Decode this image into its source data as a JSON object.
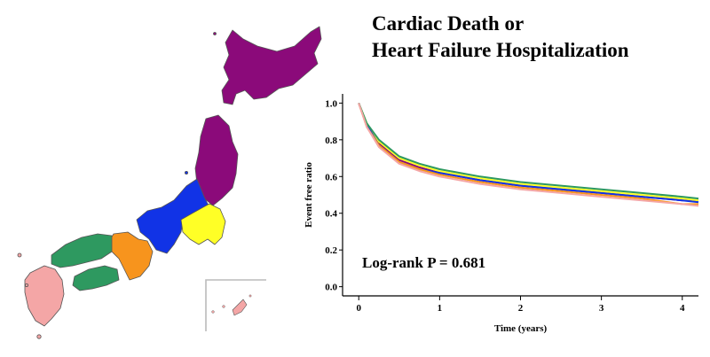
{
  "title": {
    "line1": "Cardiac Death or",
    "line2": "Heart Failure Hospitalization"
  },
  "annotation": "Log-rank P = 0.681",
  "map": {
    "regions": [
      {
        "name": "hokkaido-tohoku",
        "color": "#8B0A7A"
      },
      {
        "name": "kanto",
        "color": "#FFFF26"
      },
      {
        "name": "chubu-hokuriku",
        "color": "#1133E6"
      },
      {
        "name": "kinki",
        "color": "#F7941D"
      },
      {
        "name": "chugoku-shikoku",
        "color": "#2E9960"
      },
      {
        "name": "kyushu-okinawa",
        "color": "#F4A6A6"
      }
    ]
  },
  "chart_data": {
    "type": "line",
    "title": "",
    "xlabel": "Time (years)",
    "ylabel": "Event free ratio",
    "xlim": [
      -0.2,
      4.2
    ],
    "ylim": [
      -0.05,
      1.05
    ],
    "xticks": [
      0,
      1,
      2,
      3,
      4
    ],
    "yticks": [
      0.0,
      0.2,
      0.4,
      0.6,
      0.8,
      1.0
    ],
    "ytick_labels": [
      "0.0",
      "0.2",
      "0.4",
      "0.6",
      "0.8",
      "1.0"
    ],
    "grid": false,
    "series": [
      {
        "color": "#8B0A7A",
        "x": [
          0,
          0.1,
          0.25,
          0.5,
          0.75,
          1,
          1.5,
          2,
          2.5,
          3,
          3.5,
          4,
          4.2
        ],
        "y": [
          1.0,
          0.88,
          0.78,
          0.69,
          0.65,
          0.62,
          0.58,
          0.55,
          0.53,
          0.51,
          0.49,
          0.47,
          0.47
        ]
      },
      {
        "color": "#FFFF26",
        "x": [
          0,
          0.1,
          0.25,
          0.5,
          0.75,
          1,
          1.5,
          2,
          2.5,
          3,
          3.5,
          4,
          4.2
        ],
        "y": [
          1.0,
          0.89,
          0.79,
          0.7,
          0.66,
          0.63,
          0.59,
          0.56,
          0.54,
          0.52,
          0.5,
          0.48,
          0.47
        ]
      },
      {
        "color": "#1133E6",
        "x": [
          0,
          0.1,
          0.25,
          0.5,
          0.75,
          1,
          1.5,
          2,
          2.5,
          3,
          3.5,
          4,
          4.2
        ],
        "y": [
          1.0,
          0.88,
          0.77,
          0.68,
          0.64,
          0.62,
          0.58,
          0.55,
          0.53,
          0.51,
          0.49,
          0.47,
          0.46
        ]
      },
      {
        "color": "#F7941D",
        "x": [
          0,
          0.1,
          0.25,
          0.5,
          0.75,
          1,
          1.5,
          2,
          2.5,
          3,
          3.5,
          4,
          4.2
        ],
        "y": [
          1.0,
          0.87,
          0.77,
          0.68,
          0.64,
          0.61,
          0.57,
          0.54,
          0.52,
          0.5,
          0.48,
          0.45,
          0.45
        ]
      },
      {
        "color": "#2E9960",
        "x": [
          0,
          0.1,
          0.25,
          0.5,
          0.75,
          1,
          1.5,
          2,
          2.5,
          3,
          3.5,
          4,
          4.2
        ],
        "y": [
          1.0,
          0.89,
          0.8,
          0.71,
          0.67,
          0.64,
          0.6,
          0.57,
          0.55,
          0.53,
          0.51,
          0.49,
          0.48
        ]
      },
      {
        "color": "#F4A6A6",
        "x": [
          0,
          0.1,
          0.25,
          0.5,
          0.75,
          1,
          1.5,
          2,
          2.5,
          3,
          3.5,
          4,
          4.2
        ],
        "y": [
          1.0,
          0.87,
          0.76,
          0.67,
          0.63,
          0.6,
          0.56,
          0.53,
          0.51,
          0.49,
          0.47,
          0.45,
          0.44
        ]
      }
    ]
  }
}
